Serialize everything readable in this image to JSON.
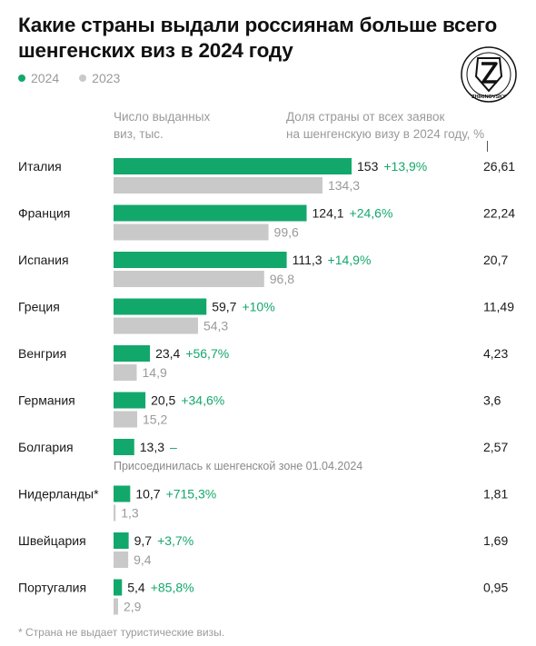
{
  "title": "Какие страны выдали россиянам больше всего шенгенских виз в 2024 году",
  "legend": [
    {
      "label": "2024",
      "color": "#13a86b"
    },
    {
      "label": "2023",
      "color": "#c9c9c9"
    }
  ],
  "logo": {
    "icon": "z-shield-emblem-icon",
    "letter": "Z"
  },
  "headers": {
    "counts_line1": "Число выданных",
    "counts_line2": "виз, тыс.",
    "share_line1": "Доля страны от всех заявок",
    "share_line2": "на шенгенскую визу в 2024 году, %"
  },
  "colors": {
    "green": "#13a86b",
    "gray": "#c9c9c9",
    "change_text": "#13a86b",
    "muted_text": "#9a9a9a"
  },
  "footnote": "* Страна не выдает туристические визы.",
  "chart_data": {
    "type": "bar",
    "orientation": "horizontal",
    "title": "Какие страны выдали россиянам больше всего шенгенских виз в 2024 году",
    "unit": "тыс.",
    "categories": [
      "Италия",
      "Франция",
      "Испания",
      "Греция",
      "Венгрия",
      "Германия",
      "Болгария",
      "Нидерланды*",
      "Швейцария",
      "Португалия"
    ],
    "series": [
      {
        "name": "2024",
        "values": [
          153,
          124.1,
          111.3,
          59.7,
          23.4,
          20.5,
          13.3,
          10.7,
          9.7,
          5.4
        ]
      },
      {
        "name": "2023",
        "values": [
          134.3,
          99.6,
          96.8,
          54.3,
          14.9,
          15.2,
          null,
          1.3,
          9.4,
          2.9
        ]
      }
    ],
    "labels_2024": [
      "153",
      "124,1",
      "111,3",
      "59,7",
      "23,4",
      "20,5",
      "13,3",
      "10,7",
      "9,7",
      "5,4"
    ],
    "labels_2023": [
      "134,3",
      "99,6",
      "96,8",
      "54,3",
      "14,9",
      "15,2",
      "",
      "1,3",
      "9,4",
      "2,9"
    ],
    "change": [
      "+13,9%",
      "+24,6%",
      "+14,9%",
      "+10%",
      "+56,7%",
      "+34,6%",
      "–",
      "+715,3%",
      "+3,7%",
      "+85,8%"
    ],
    "share_2024": [
      "26,61",
      "22,24",
      "20,7",
      "11,49",
      "4,23",
      "3,6",
      "2,57",
      "1,81",
      "1,69",
      "0,95"
    ],
    "notes": [
      "",
      "",
      "",
      "",
      "",
      "",
      "Присоединилась к шенгенской зоне 01.04.2024",
      "",
      "",
      ""
    ]
  }
}
